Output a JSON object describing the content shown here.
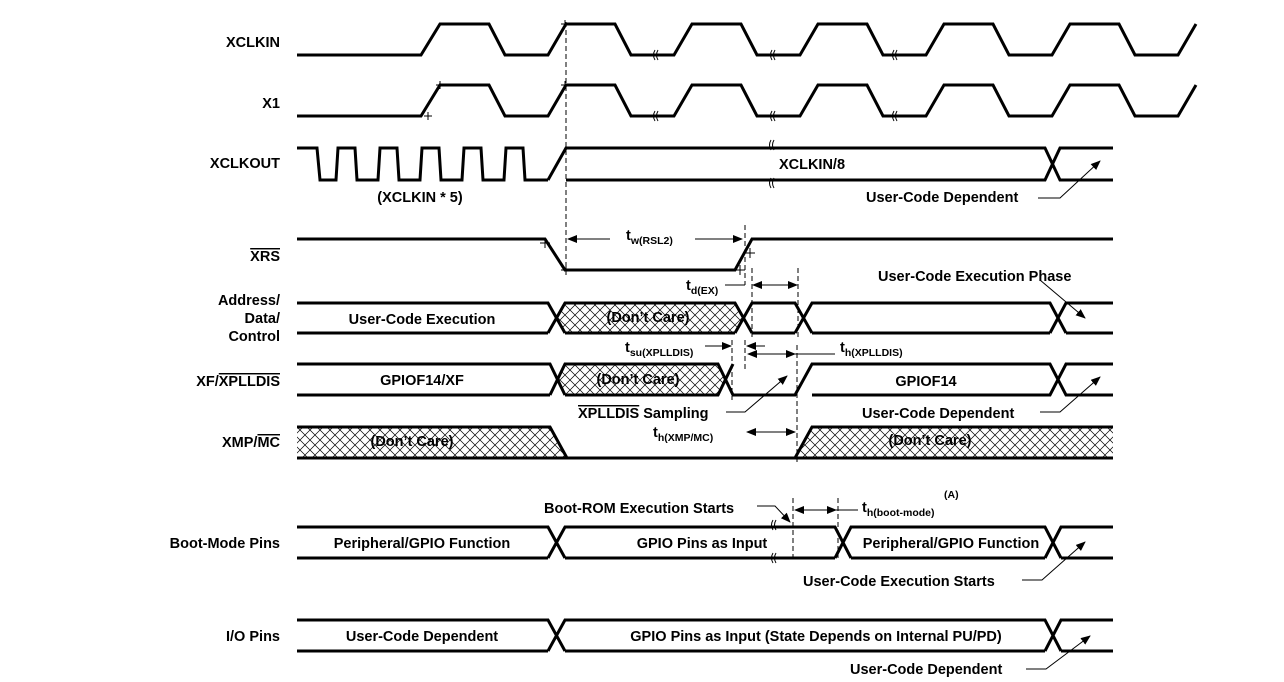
{
  "signals": {
    "xclkin": "XCLKIN",
    "x1": "X1",
    "xclkout": "XCLKOUT",
    "xrs": "XRS",
    "addr1": "Address/",
    "addr2": "Data/",
    "addr3": "Control",
    "xf_pre": "XF/",
    "xf_bar": "XPLLDIS",
    "xmp_pre": "XMP/",
    "xmp_bar": "MC",
    "boot": "Boot-Mode Pins",
    "io": "I/O Pins"
  },
  "labels": {
    "xclkin5": "(XCLKIN * 5)",
    "xclkin8": "XCLKIN/8",
    "ucd1": "User-Code Dependent",
    "ucexec": "User-Code Execution",
    "dontcare": "(Don’t Care)",
    "ucexecphase": "User-Code Execution Phase",
    "gpiof14xf": "GPIOF14/XF",
    "gpiof14": "GPIOF14",
    "ucd2": "User-Code Dependent",
    "xplldis_bar": "XPLLDIS",
    "sampling": " Sampling",
    "bootrom": "Boot-ROM Execution Starts",
    "periph1": "Peripheral/GPIO Function",
    "gpioinput": "GPIO Pins as Input",
    "periph2": "Peripheral/GPIO Function",
    "ucexecstarts": "User-Code Execution Starts",
    "ucd3": "User-Code Dependent",
    "gpioinput_state": "GPIO Pins as Input (State Depends on Internal PU/PD)",
    "ucd4": "User-Code Dependent"
  },
  "timings": {
    "tw": {
      "t": "t",
      "sub": "w(RSL2)"
    },
    "td": {
      "t": "t",
      "sub": "d(EX)"
    },
    "tsu": {
      "t": "t",
      "sub": "su(XPLLDIS)"
    },
    "th_xplldis": {
      "t": "t",
      "sub": "h(XPLLDIS)"
    },
    "th_xmp": {
      "t": "t",
      "sub": "h(XMP/MC)"
    },
    "th_boot": {
      "t": "t",
      "sub": "h(boot-mode)",
      "note": "(A)"
    }
  }
}
